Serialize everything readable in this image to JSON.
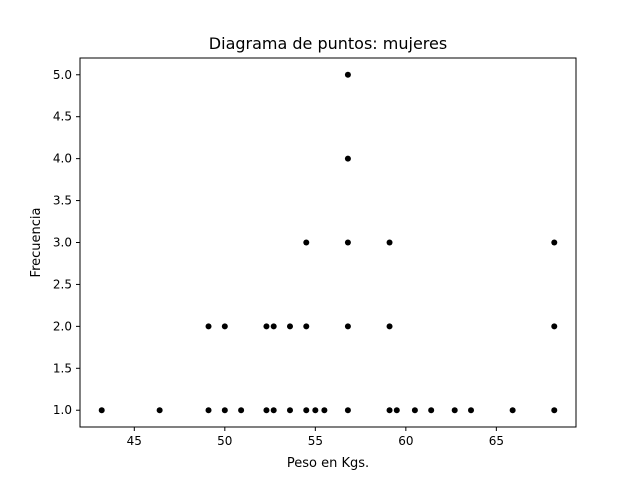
{
  "chart_data": {
    "type": "scatter",
    "title": "Diagrama de puntos: mujeres",
    "xlabel": "Peso en Kgs.",
    "ylabel": "Frecuencia",
    "xlim": [
      42.0,
      69.4
    ],
    "ylim": [
      0.8,
      5.2
    ],
    "xticks": [
      45,
      50,
      55,
      60,
      65
    ],
    "xtick_labels": [
      "45",
      "50",
      "55",
      "60",
      "65"
    ],
    "yticks": [
      1.0,
      1.5,
      2.0,
      2.5,
      3.0,
      3.5,
      4.0,
      4.5,
      5.0
    ],
    "ytick_labels": [
      "1.0",
      "1.5",
      "2.0",
      "2.5",
      "3.0",
      "3.5",
      "4.0",
      "4.5",
      "5.0"
    ],
    "grid": false,
    "marker_color": "#000000",
    "points": [
      {
        "x": 43.2,
        "y": 1
      },
      {
        "x": 46.4,
        "y": 1
      },
      {
        "x": 49.1,
        "y": 1
      },
      {
        "x": 49.1,
        "y": 2
      },
      {
        "x": 50.0,
        "y": 1
      },
      {
        "x": 50.0,
        "y": 2
      },
      {
        "x": 50.9,
        "y": 1
      },
      {
        "x": 52.3,
        "y": 1
      },
      {
        "x": 52.3,
        "y": 2
      },
      {
        "x": 52.7,
        "y": 1
      },
      {
        "x": 52.7,
        "y": 2
      },
      {
        "x": 53.6,
        "y": 1
      },
      {
        "x": 53.6,
        "y": 2
      },
      {
        "x": 54.5,
        "y": 1
      },
      {
        "x": 54.5,
        "y": 2
      },
      {
        "x": 54.5,
        "y": 3
      },
      {
        "x": 55.0,
        "y": 1
      },
      {
        "x": 55.5,
        "y": 1
      },
      {
        "x": 56.8,
        "y": 1
      },
      {
        "x": 56.8,
        "y": 2
      },
      {
        "x": 56.8,
        "y": 3
      },
      {
        "x": 56.8,
        "y": 4
      },
      {
        "x": 56.8,
        "y": 5
      },
      {
        "x": 59.1,
        "y": 1
      },
      {
        "x": 59.1,
        "y": 2
      },
      {
        "x": 59.1,
        "y": 3
      },
      {
        "x": 59.5,
        "y": 1
      },
      {
        "x": 60.5,
        "y": 1
      },
      {
        "x": 61.4,
        "y": 1
      },
      {
        "x": 62.7,
        "y": 1
      },
      {
        "x": 63.6,
        "y": 1
      },
      {
        "x": 65.9,
        "y": 1
      },
      {
        "x": 68.2,
        "y": 1
      },
      {
        "x": 68.2,
        "y": 2
      },
      {
        "x": 68.2,
        "y": 3
      }
    ]
  }
}
